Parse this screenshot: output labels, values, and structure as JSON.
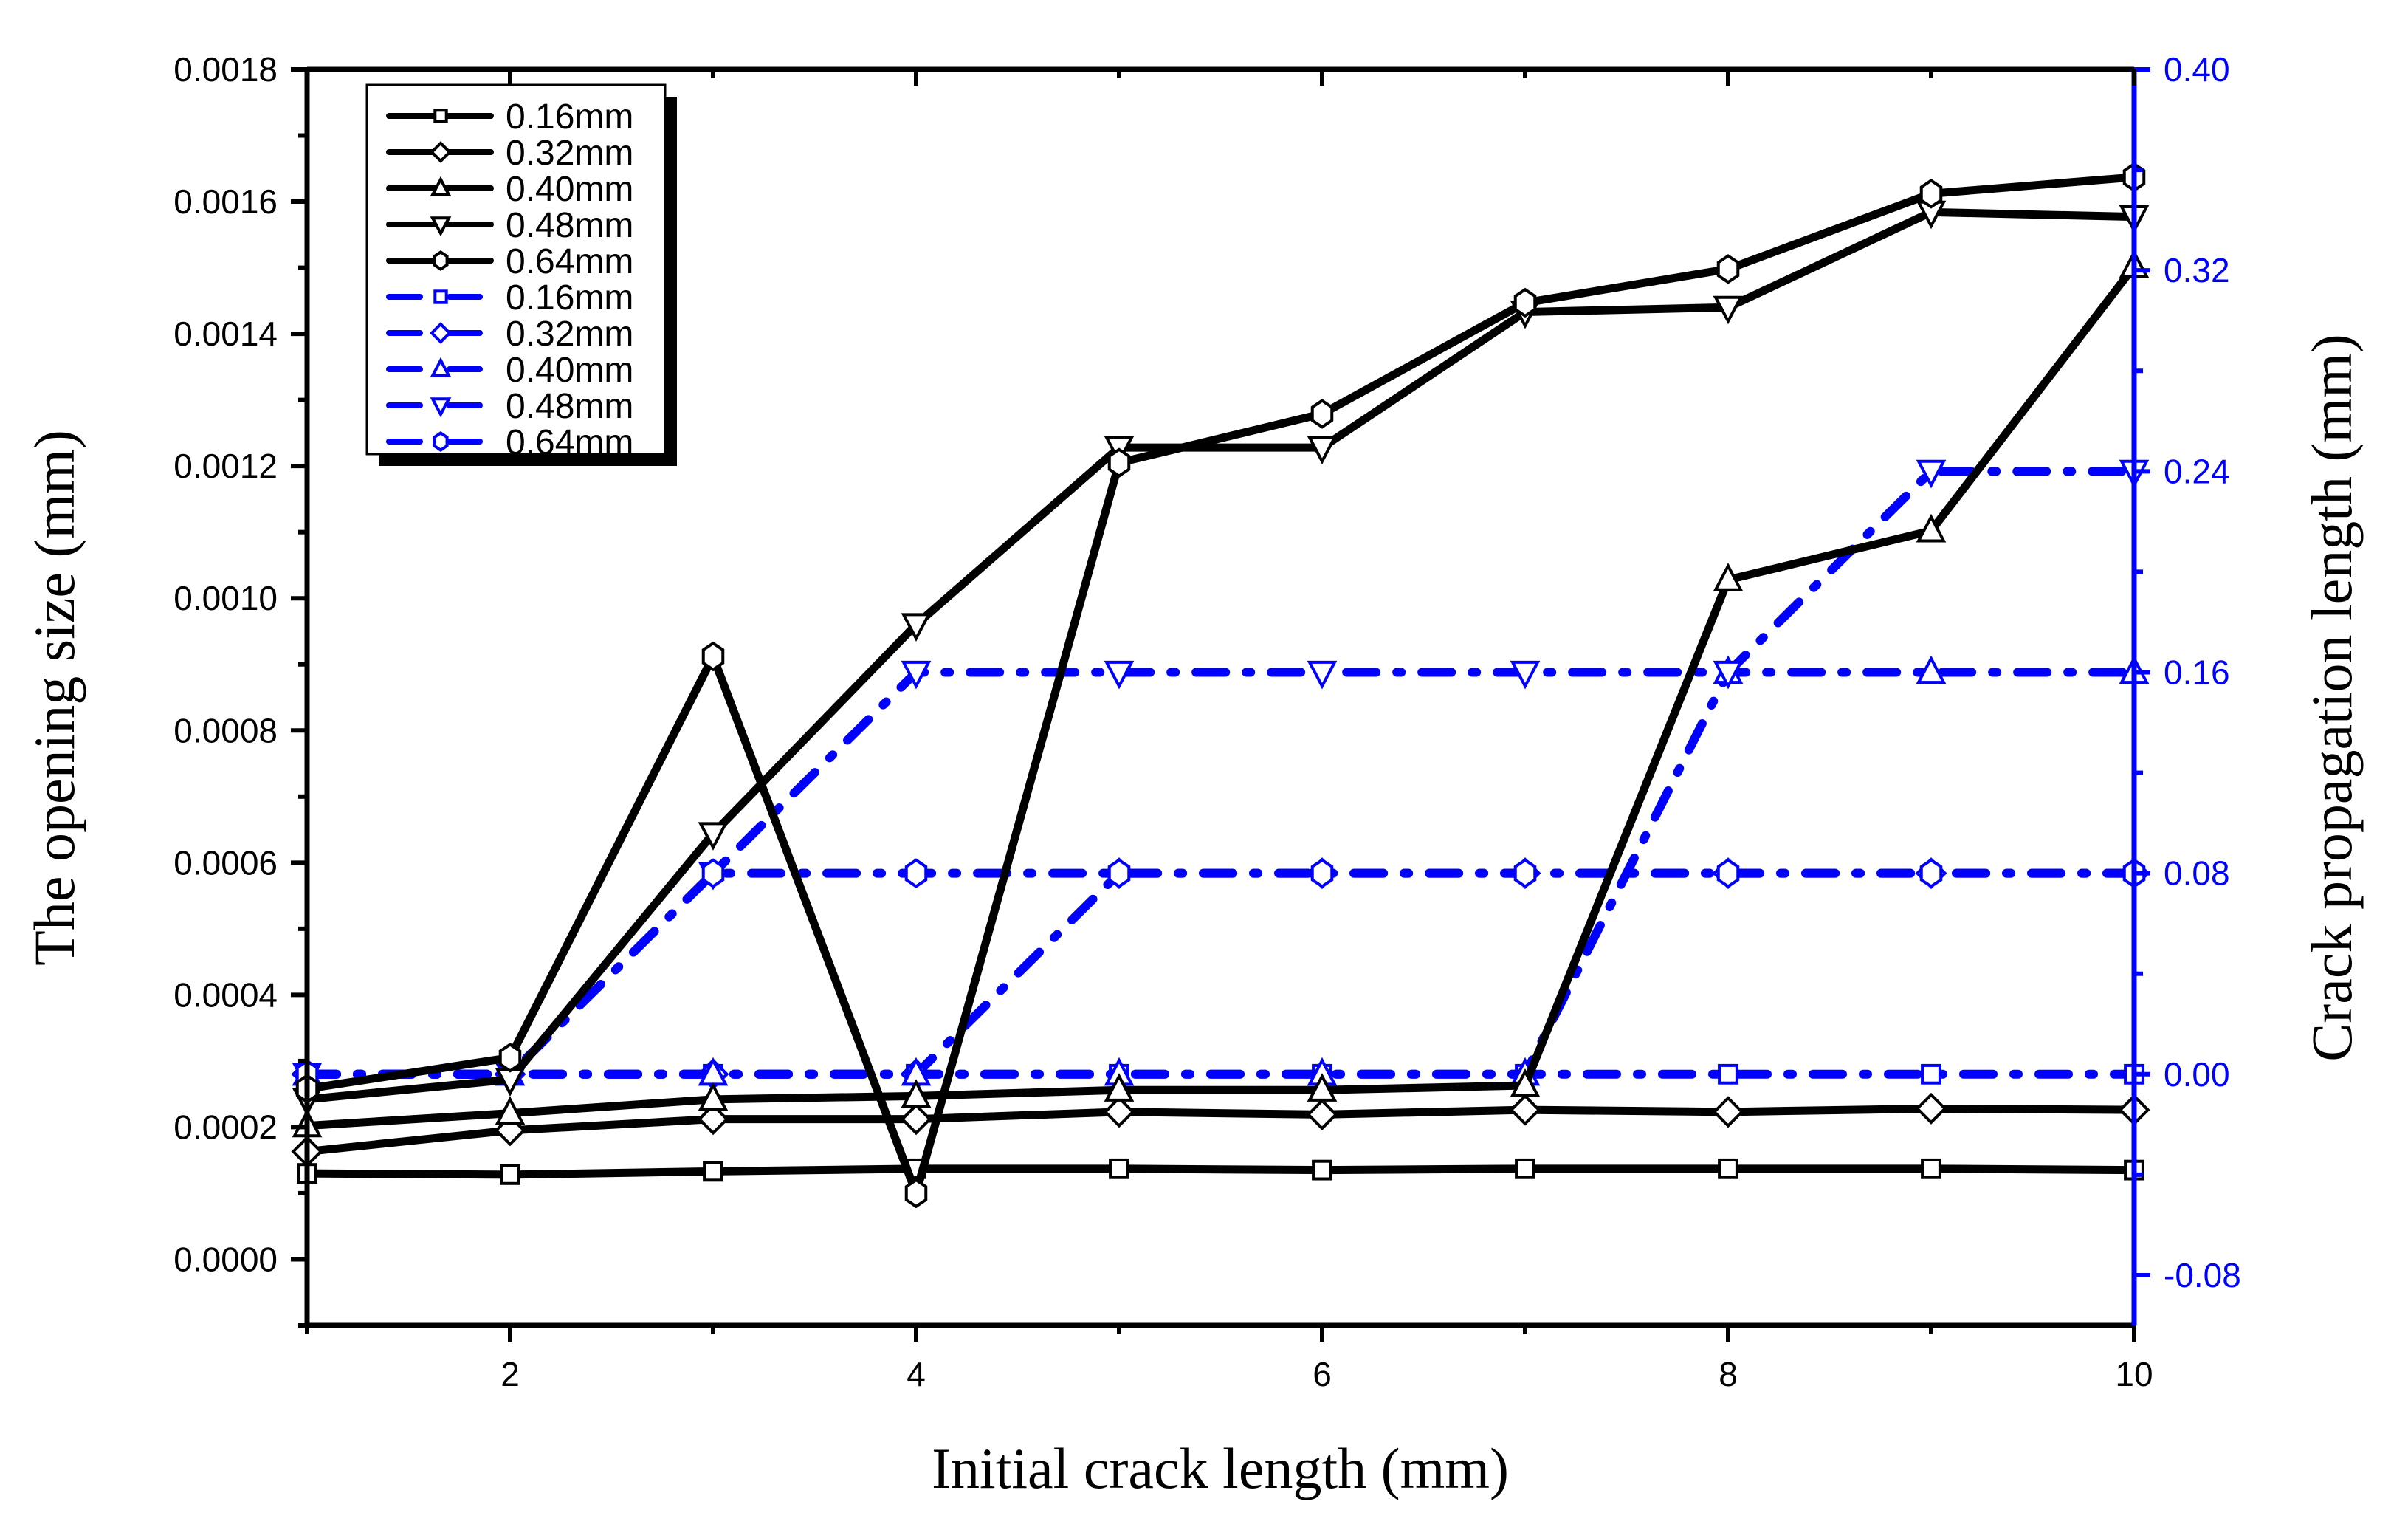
{
  "chart_data": {
    "type": "line",
    "title": "",
    "xlabel": "Initial crack length (mm)",
    "ylabel": "The opening size (mm)",
    "y2label": "Crack propagation length (mm)",
    "xlim": [
      1,
      10
    ],
    "ylim": [
      -0.0001,
      0.0018
    ],
    "y2lim": [
      -0.1,
      0.4
    ],
    "xticks": [
      2,
      4,
      6,
      8,
      10
    ],
    "yticks": [
      "0.0000",
      "0.0002",
      "0.0004",
      "0.0006",
      "0.0008",
      "0.0010",
      "0.0012",
      "0.0014",
      "0.0016",
      "0.0018"
    ],
    "y2ticks": [
      "-0.08",
      "0.00",
      "0.08",
      "0.16",
      "0.24",
      "0.32",
      "0.40"
    ],
    "grid": false,
    "legend_position": "upper-left",
    "x": [
      1,
      2,
      3,
      4,
      5,
      6,
      7,
      8,
      9,
      10
    ],
    "series": [
      {
        "name": "0.16mm",
        "axis": "left",
        "color": "#000000",
        "marker": "square",
        "style": "solid",
        "values": [
          0.00013,
          0.000128,
          0.000133,
          0.000137,
          0.000137,
          0.000135,
          0.000137,
          0.000137,
          0.000137,
          0.000135
        ]
      },
      {
        "name": "0.32mm",
        "axis": "left",
        "color": "#000000",
        "marker": "diamond",
        "style": "solid",
        "values": [
          0.000163,
          0.000195,
          0.000212,
          0.000212,
          0.000223,
          0.000219,
          0.000226,
          0.000223,
          0.000228,
          0.000226
        ]
      },
      {
        "name": "0.40mm",
        "axis": "left",
        "color": "#000000",
        "marker": "triangle-up",
        "style": "solid",
        "values": [
          0.000202,
          0.000221,
          0.000242,
          0.000247,
          0.000256,
          0.000256,
          0.000263,
          0.001028,
          0.001102,
          0.001502
        ]
      },
      {
        "name": "0.48mm",
        "axis": "left",
        "color": "#000000",
        "marker": "triangle-down",
        "style": "solid",
        "values": [
          0.000242,
          0.000272,
          0.000644,
          0.00096,
          0.001228,
          0.001228,
          0.001433,
          0.00144,
          0.001584,
          0.001577
        ]
      },
      {
        "name": "0.64mm",
        "axis": "left",
        "color": "#000000",
        "marker": "hexagon",
        "style": "solid",
        "values": [
          0.000258,
          0.000305,
          0.000912,
          0.0001,
          0.001205,
          0.001279,
          0.001447,
          0.001498,
          0.001612,
          0.001637
        ]
      },
      {
        "name": "0.16mm",
        "axis": "right",
        "color": "#0000FF",
        "marker": "square",
        "style": "dash-dot",
        "values": [
          0,
          0,
          0,
          0,
          0,
          0,
          0,
          0,
          0,
          0
        ]
      },
      {
        "name": "0.32mm",
        "axis": "right",
        "color": "#0000FF",
        "marker": "diamond",
        "style": "dash-dot",
        "values": [
          0,
          0,
          0,
          0,
          0.08,
          0.08,
          0.08,
          0.08,
          0.08,
          0.08
        ]
      },
      {
        "name": "0.40mm",
        "axis": "right",
        "color": "#0000FF",
        "marker": "triangle-up",
        "style": "dash-dot",
        "values": [
          0,
          0,
          0,
          0,
          0,
          0,
          0,
          0.16,
          0.16,
          0.16
        ]
      },
      {
        "name": "0.48mm",
        "axis": "right",
        "color": "#0000FF",
        "marker": "triangle-down",
        "style": "dash-dot",
        "values": [
          0,
          0,
          0.08,
          0.16,
          0.16,
          0.16,
          0.16,
          0.16,
          0.24,
          0.24
        ]
      },
      {
        "name": "0.64mm",
        "axis": "right",
        "color": "#0000FF",
        "marker": "hexagon",
        "style": "dash-dot",
        "values": [
          0,
          0,
          0.08,
          0.08,
          0.08,
          0.08,
          0.08,
          0.08,
          0.08,
          0.08
        ]
      }
    ]
  },
  "legend": [
    "0.16mm",
    "0.32mm",
    "0.40mm",
    "0.48mm",
    "0.64mm",
    "0.16mm",
    "0.32mm",
    "0.40mm",
    "0.48mm",
    "0.64mm"
  ],
  "colors": {
    "left_axis": "#000000",
    "right_axis": "#0000FF"
  }
}
